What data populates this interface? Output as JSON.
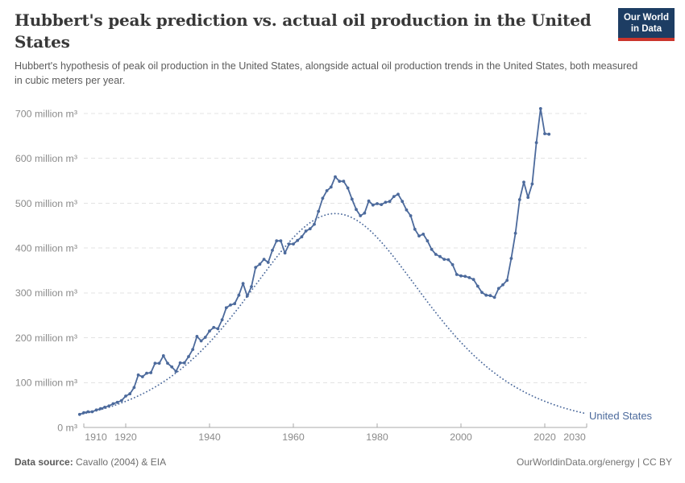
{
  "header": {
    "title": "Hubbert's peak prediction vs. actual oil production in the United States",
    "subtitle": "Hubbert's hypothesis of peak oil production in the United States, alongside actual oil production trends in the United States, both measured in cubic meters per year.",
    "logo": {
      "line1": "Our World",
      "line2": "in Data"
    }
  },
  "footer": {
    "source_label": "Data source:",
    "source_text": " Cavallo (2004) & EIA",
    "credit": "OurWorldinData.org/energy | CC BY"
  },
  "colors": {
    "line": "#4c6a9c",
    "legend_text": "#4c6a9c",
    "grid": "#e3e3e3",
    "axis": "#a9a9a9",
    "tick_label": "#8b8b8b",
    "logo_navy": "#1d3d63",
    "logo_red": "#cb352c"
  },
  "chart_data": {
    "type": "line",
    "title": "Hubbert's peak prediction vs. actual oil production in the United States",
    "unit": "million m³ per year",
    "legend_label": "United States",
    "grid": "dashed-horizontal",
    "xlim": [
      1910,
      2030
    ],
    "ylim": [
      0,
      700
    ],
    "x_ticks": [
      {
        "year": 1910,
        "label": "1910"
      },
      {
        "year": 1920,
        "label": "1920"
      },
      {
        "year": 1940,
        "label": "1940"
      },
      {
        "year": 1960,
        "label": "1960"
      },
      {
        "year": 1980,
        "label": "1980"
      },
      {
        "year": 2000,
        "label": "2000"
      },
      {
        "year": 2020,
        "label": "2020"
      },
      {
        "year": 2030,
        "label": "2030"
      }
    ],
    "y_ticks": [
      {
        "value": 0,
        "label": "0 m³"
      },
      {
        "value": 100,
        "label": "100 million m³"
      },
      {
        "value": 200,
        "label": "200 million m³"
      },
      {
        "value": 300,
        "label": "300 million m³"
      },
      {
        "value": 400,
        "label": "400 million m³"
      },
      {
        "value": 500,
        "label": "500 million m³"
      },
      {
        "value": 600,
        "label": "600 million m³"
      },
      {
        "value": 700,
        "label": "700 million m³"
      }
    ],
    "series": [
      {
        "name": "United States — actual oil production",
        "style": "solid",
        "markers": true,
        "start_year": 1909,
        "values": [
          29,
          33,
          35,
          35,
          39,
          42,
          45,
          48,
          53,
          56,
          60,
          70,
          75,
          89,
          117,
          113,
          121,
          122,
          143,
          143,
          160,
          143,
          135,
          125,
          144,
          144,
          158,
          174,
          203,
          193,
          201,
          215,
          223,
          220,
          240,
          267,
          273,
          276,
          295,
          321,
          293,
          314,
          357,
          364,
          375,
          368,
          395,
          416,
          416,
          389,
          409,
          409,
          417,
          425,
          438,
          443,
          453,
          482,
          511,
          528,
          536,
          559,
          549,
          549,
          534,
          509,
          486,
          472,
          478,
          505,
          496,
          499,
          497,
          502,
          504,
          515,
          520,
          504,
          485,
          472,
          442,
          427,
          431,
          416,
          397,
          386,
          381,
          375,
          374,
          363,
          341,
          338,
          337,
          334,
          330,
          315,
          301,
          295,
          294,
          290,
          310,
          318,
          328,
          377,
          433,
          508,
          547,
          513,
          543,
          635,
          711,
          655,
          654
        ]
      },
      {
        "name": "United States — Hubbert's peak prediction",
        "style": "dotted",
        "markers": false,
        "start_year": 1909,
        "values": [
          28.6,
          30.5,
          32.6,
          34.8,
          37.1,
          39.6,
          42.3,
          45.1,
          48.1,
          51.3,
          54.7,
          58.3,
          62.1,
          66.1,
          70.4,
          74.9,
          79.7,
          84.7,
          90.1,
          95.7,
          101.7,
          107.9,
          114.5,
          121.5,
          128.7,
          136.4,
          144.3,
          152.7,
          161.4,
          170.5,
          180,
          189.8,
          200,
          210.5,
          221.4,
          232.6,
          244.1,
          255.9,
          267.9,
          280.1,
          292.5,
          305.1,
          317.7,
          330.3,
          342.9,
          355.3,
          367.6,
          379.6,
          391.3,
          402.6,
          413.3,
          423.5,
          433,
          441.7,
          449.7,
          456.7,
          462.8,
          467.8,
          471.8,
          474.7,
          476.4,
          477,
          476.4,
          474.7,
          471.8,
          467.8,
          462.8,
          456.7,
          449.7,
          441.7,
          433,
          423.5,
          413.3,
          402.6,
          391.3,
          379.6,
          367.6,
          355.3,
          342.9,
          330.3,
          317.7,
          305.1,
          292.5,
          280.1,
          267.9,
          255.9,
          244.1,
          232.6,
          221.4,
          210.5,
          200,
          189.8,
          180,
          170.5,
          161.4,
          152.7,
          144.3,
          136.4,
          128.7,
          121.5,
          114.5,
          107.9,
          101.7,
          95.7,
          90.1,
          84.7,
          79.7,
          74.9,
          70.4,
          66.1,
          62.1,
          58.3,
          54.7,
          51.3,
          48.1,
          45.1,
          42.3,
          39.6,
          37.1,
          34.8,
          32.6,
          30.5
        ]
      }
    ]
  }
}
